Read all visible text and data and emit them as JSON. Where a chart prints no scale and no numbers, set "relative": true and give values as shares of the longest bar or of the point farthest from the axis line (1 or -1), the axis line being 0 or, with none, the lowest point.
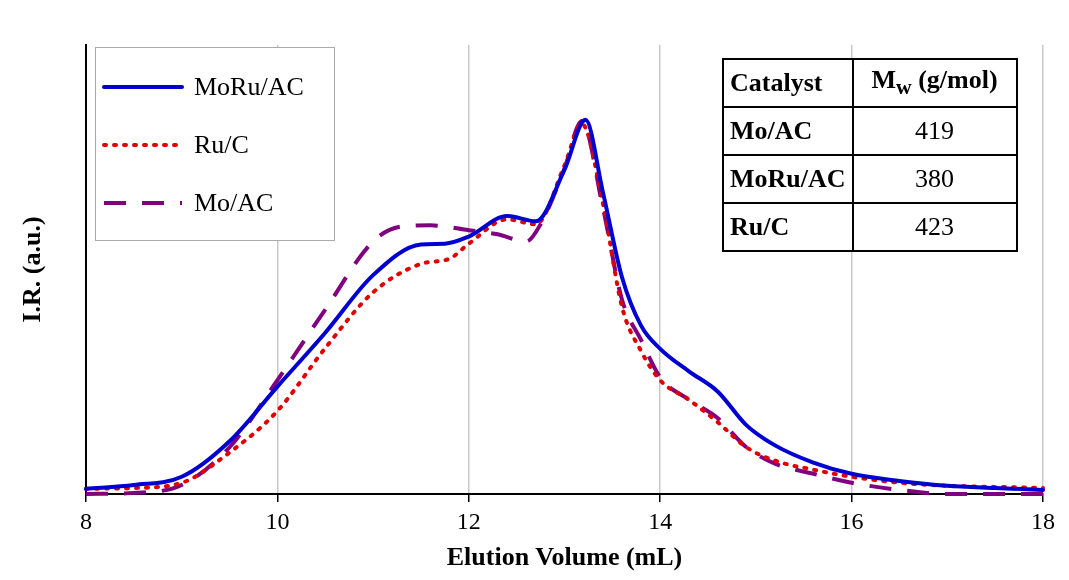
{
  "chart_data": {
    "type": "line",
    "xlabel": "Elution Volume (mL)",
    "ylabel": "I.R. (a.u.)",
    "relative": true,
    "xlim": [
      8,
      18
    ],
    "xticks": [
      8,
      10,
      12,
      14,
      16,
      18
    ],
    "grid": "x",
    "legend": "top left",
    "series": [
      {
        "name": "MoRu/AC",
        "color": "#0000d0",
        "line_style": "solid",
        "x": [
          8,
          8.5,
          9,
          9.5,
          10,
          10.5,
          11,
          11.5,
          11.75,
          12,
          12.4,
          12.7,
          13,
          13.22,
          13.4,
          13.6,
          13.8,
          14,
          14.3,
          14.6,
          14.9,
          15.2,
          15.6,
          16,
          16.5,
          17,
          17.5,
          18
        ],
        "values": [
          0.014,
          0.024,
          0.046,
          0.141,
          0.287,
          0.431,
          0.585,
          0.667,
          0.669,
          0.688,
          0.743,
          0.729,
          0.867,
          1,
          0.808,
          0.58,
          0.45,
          0.388,
          0.328,
          0.274,
          0.184,
          0.13,
          0.084,
          0.054,
          0.035,
          0.022,
          0.016,
          0.011
        ]
      },
      {
        "name": "Ru/C",
        "color": "#e00000",
        "line_style": "dotted",
        "x": [
          8,
          8.5,
          9,
          9.5,
          10,
          10.5,
          11,
          11.5,
          11.8,
          12,
          12.4,
          12.7,
          13,
          13.18,
          13.4,
          13.6,
          13.8,
          14,
          14.3,
          14.6,
          14.9,
          15.2,
          15.6,
          16,
          16.5,
          17,
          17.5,
          18
        ],
        "values": [
          0.014,
          0.016,
          0.03,
          0.111,
          0.222,
          0.39,
          0.539,
          0.615,
          0.629,
          0.669,
          0.734,
          0.721,
          0.878,
          0.99,
          0.778,
          0.501,
          0.382,
          0.304,
          0.252,
          0.192,
          0.125,
          0.089,
          0.065,
          0.046,
          0.03,
          0.022,
          0.019,
          0.016
        ]
      },
      {
        "name": "Mo/AC",
        "color": "#800080",
        "line_style": "dashed",
        "x": [
          8,
          8.5,
          9,
          9.5,
          10,
          10.5,
          11,
          11.3,
          11.6,
          12,
          12.3,
          12.6,
          12.75,
          13,
          13.18,
          13.4,
          13.6,
          13.8,
          14,
          14.3,
          14.6,
          14.9,
          15.2,
          15.6,
          16,
          16.5,
          17,
          17.5,
          18
        ],
        "values": [
          0,
          0.003,
          0.024,
          0.125,
          0.304,
          0.493,
          0.675,
          0.715,
          0.718,
          0.705,
          0.694,
          0.675,
          0.721,
          0.87,
          0.997,
          0.767,
          0.52,
          0.412,
          0.312,
          0.252,
          0.203,
          0.125,
          0.081,
          0.054,
          0.03,
          0.011,
          0,
          0,
          0
        ]
      }
    ],
    "annotations": [
      "Catalyst",
      "M$_{w}$ (g/mol)",
      "Mo/AC",
      "419",
      "MoRu/AC",
      "380",
      "Ru/C",
      "423"
    ]
  }
}
